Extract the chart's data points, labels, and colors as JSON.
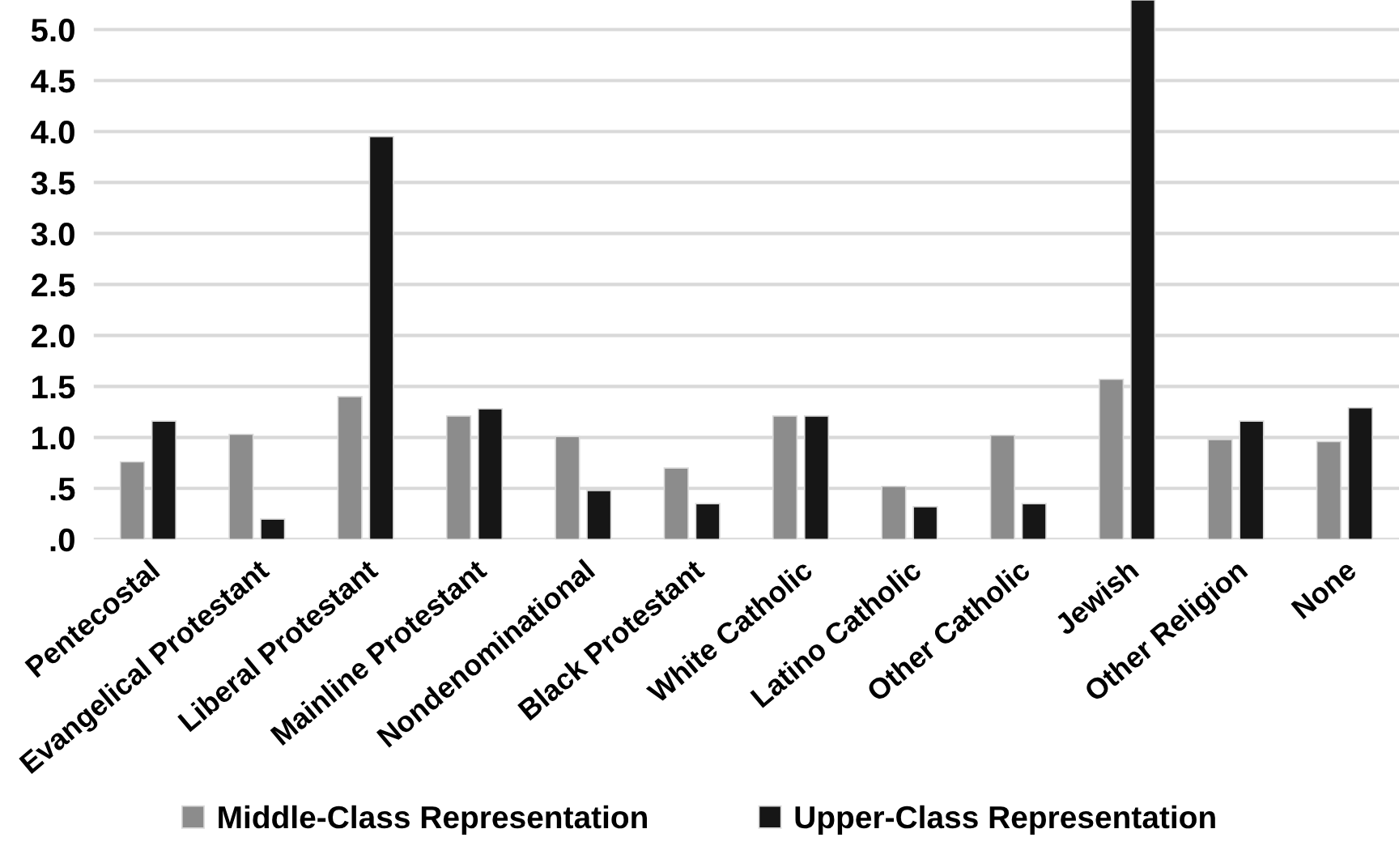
{
  "chart_data": {
    "type": "bar",
    "categories": [
      "Pentecostal",
      "Evangelical Protestant",
      "Liberal Protestant",
      "Mainline Protestant",
      "Nondenominational",
      "Black Protestant",
      "White Catholic",
      "Latino Catholic",
      "Other Catholic",
      "Jewish",
      "Other Religion",
      "None"
    ],
    "series": [
      {
        "name": "Middle-Class Representation",
        "color": "#8c8c8c",
        "values": [
          0.76,
          1.03,
          1.4,
          1.21,
          1.01,
          0.7,
          1.21,
          0.52,
          1.02,
          1.57,
          0.98,
          0.96
        ]
      },
      {
        "name": "Upper-Class Representation",
        "color": "#161616",
        "values": [
          1.16,
          0.2,
          3.95,
          1.28,
          0.48,
          0.35,
          1.21,
          0.32,
          0.35,
          5.29,
          1.16,
          1.29
        ]
      }
    ],
    "ylim": [
      0,
      5.29
    ],
    "yticks": [
      {
        "value": 0,
        "label": ".0"
      },
      {
        "value": 0.5,
        "label": ".5"
      },
      {
        "value": 1,
        "label": "1.0"
      },
      1.5,
      {
        "value": 2,
        "label": "2.0"
      },
      2.5,
      {
        "value": 3,
        "label": "3.0"
      },
      3.5,
      {
        "value": 4,
        "label": "4.0"
      },
      4.5,
      {
        "value": 5,
        "label": "5.0"
      }
    ],
    "grid": "y",
    "legend": "bottom"
  }
}
